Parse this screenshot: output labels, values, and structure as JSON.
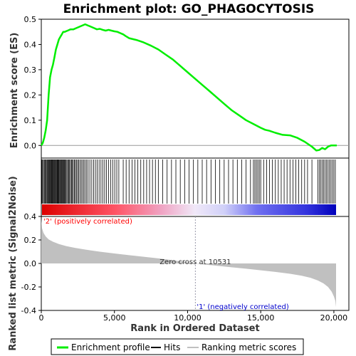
{
  "chart_data": {
    "type": "line",
    "title": "Enrichment plot: GO_PHAGOCYTOSIS",
    "xlabel": "Rank in Ordered Dataset",
    "top_panel": {
      "ylabel": "Enrichment score (ES)",
      "ylim": [
        -0.05,
        0.5
      ],
      "yticks": [
        "0.0",
        "0.1",
        "0.2",
        "0.3",
        "0.4",
        "0.5"
      ],
      "ytick_values": [
        0.0,
        0.1,
        0.2,
        0.3,
        0.4,
        0.5
      ],
      "series": [
        {
          "name": "Enrichment profile",
          "color": "#00ee00",
          "x": [
            0,
            100,
            200,
            300,
            400,
            500,
            600,
            700,
            800,
            900,
            1000,
            1100,
            1200,
            1300,
            1400,
            1500,
            1600,
            1800,
            2000,
            2200,
            2400,
            2600,
            2800,
            3000,
            3200,
            3400,
            3600,
            3800,
            4000,
            4200,
            4400,
            4600,
            4800,
            5000,
            5200,
            5400,
            5600,
            5800,
            6000,
            6500,
            7000,
            7500,
            8000,
            8500,
            9000,
            9500,
            10000,
            10500,
            11000,
            11500,
            12000,
            12500,
            13000,
            13500,
            14000,
            14500,
            15000,
            15300,
            15600,
            16000,
            16500,
            17000,
            17500,
            18000,
            18500,
            18800,
            19000,
            19200,
            19400,
            19600,
            19800,
            20000,
            20200
          ],
          "y": [
            0.0,
            0.01,
            0.03,
            0.06,
            0.1,
            0.2,
            0.27,
            0.3,
            0.32,
            0.35,
            0.38,
            0.4,
            0.42,
            0.43,
            0.44,
            0.45,
            0.45,
            0.455,
            0.46,
            0.46,
            0.465,
            0.47,
            0.475,
            0.48,
            0.475,
            0.47,
            0.465,
            0.46,
            0.462,
            0.458,
            0.455,
            0.458,
            0.455,
            0.452,
            0.45,
            0.445,
            0.44,
            0.432,
            0.425,
            0.418,
            0.408,
            0.395,
            0.38,
            0.36,
            0.34,
            0.315,
            0.29,
            0.265,
            0.24,
            0.215,
            0.19,
            0.165,
            0.14,
            0.12,
            0.1,
            0.085,
            0.07,
            0.062,
            0.058,
            0.05,
            0.042,
            0.04,
            0.03,
            0.015,
            -0.005,
            -0.02,
            -0.018,
            -0.01,
            -0.015,
            -0.005,
            0.0,
            0.0,
            0.0
          ]
        }
      ]
    },
    "bottom_panel": {
      "ylabel": "Ranked list metric (Signal2Noise)",
      "ylim": [
        -0.4,
        0.4
      ],
      "yticks": [
        "-0.4",
        "-0.2",
        "0.0",
        "0.2",
        "0.4"
      ],
      "ytick_values": [
        -0.4,
        -0.2,
        0.0,
        0.2,
        0.4
      ],
      "metric_x": [
        0,
        50,
        150,
        300,
        500,
        800,
        1200,
        1700,
        2300,
        3000,
        4000,
        5000,
        6000,
        7000,
        8000,
        9000,
        10000,
        10531,
        11000,
        12000,
        13000,
        14000,
        15000,
        16000,
        17000,
        17800,
        18400,
        18900,
        19300,
        19600,
        19850,
        20000,
        20100,
        20150
      ],
      "metric_y": [
        0.38,
        0.3,
        0.26,
        0.23,
        0.205,
        0.185,
        0.165,
        0.148,
        0.133,
        0.118,
        0.1,
        0.085,
        0.07,
        0.057,
        0.043,
        0.027,
        0.01,
        0.0,
        -0.008,
        -0.02,
        -0.033,
        -0.045,
        -0.058,
        -0.072,
        -0.088,
        -0.105,
        -0.122,
        -0.145,
        -0.17,
        -0.2,
        -0.24,
        -0.28,
        -0.32,
        -0.37
      ],
      "metric_color": "#c0c0c0"
    },
    "x_axis": {
      "xlim": [
        0,
        20150
      ],
      "ticks": [
        "0",
        "5,000",
        "10,000",
        "15,000",
        "20,000"
      ],
      "tick_values": [
        0,
        5000,
        10000,
        15000,
        20000
      ]
    },
    "hits": [
      0,
      40,
      90,
      150,
      210,
      260,
      320,
      380,
      430,
      470,
      520,
      560,
      600,
      640,
      690,
      730,
      770,
      820,
      860,
      900,
      940,
      990,
      1030,
      1080,
      1120,
      1160,
      1200,
      1250,
      1300,
      1340,
      1390,
      1430,
      1480,
      1530,
      1580,
      1630,
      1690,
      1750,
      1810,
      1870,
      1930,
      2000,
      2060,
      2120,
      2190,
      2260,
      2330,
      2400,
      2480,
      2560,
      2640,
      2730,
      2820,
      2910,
      3000,
      3100,
      3200,
      3320,
      3450,
      3580,
      3700,
      3820,
      3950,
      4080,
      4200,
      4330,
      4460,
      4600,
      4740,
      4880,
      5020,
      5160,
      5300,
      5600,
      5800,
      6000,
      6200,
      6400,
      6600,
      6800,
      7000,
      7200,
      7400,
      7600,
      7800,
      8000,
      8300,
      8600,
      8900,
      9200,
      9500,
      9800,
      10100,
      10400,
      10700,
      11000,
      11300,
      11600,
      11900,
      12200,
      12500,
      12800,
      13100,
      13400,
      13700,
      14000,
      14300,
      14500,
      14600,
      14700,
      14800,
      14900,
      15000,
      15200,
      15400,
      15600,
      15800,
      16000,
      16200,
      16400,
      16600,
      16800,
      17000,
      17200,
      17400,
      17600,
      17800,
      18000,
      18200,
      18500,
      18900,
      19000,
      19100,
      19200,
      19300,
      19400,
      19500,
      19600,
      19700,
      19800,
      19900,
      20000,
      20100
    ],
    "zero_cross": 10531,
    "annotations": {
      "positive": "'2' (positively correlated)",
      "negative": "'1' (negatively correlated)",
      "zero_cross": "Zero cross at 10531"
    },
    "legend": {
      "placement": "bottom",
      "items": [
        {
          "label": "Enrichment profile",
          "color": "#00ee00"
        },
        {
          "label": "Hits",
          "color": "#000000"
        },
        {
          "label": "Ranking metric scores",
          "color": "#c0c0c0"
        }
      ]
    },
    "colors": {
      "positive_annotation": "#ff0000",
      "negative_annotation": "#0000cc",
      "zero_cross_line": "#9999aa"
    }
  }
}
